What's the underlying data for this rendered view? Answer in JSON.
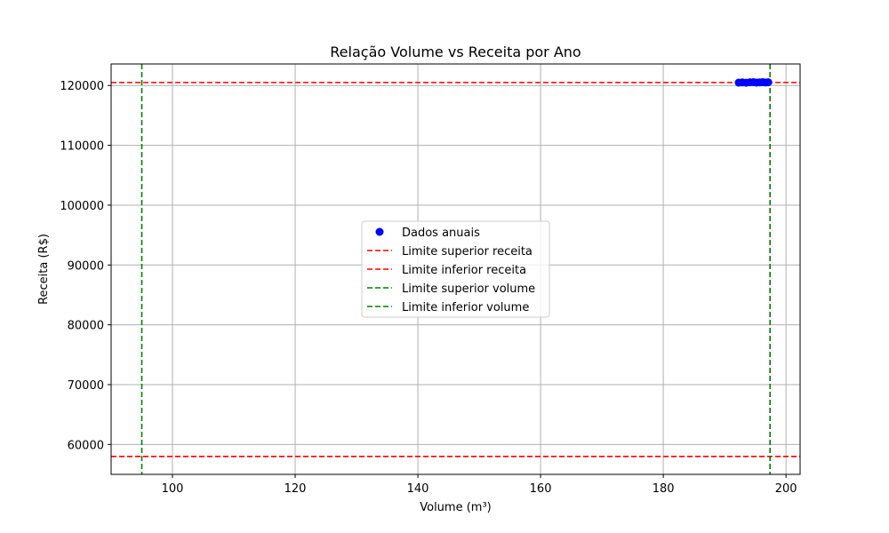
{
  "chart_data": {
    "type": "scatter",
    "title": "Relação Volume vs Receita por Ano",
    "xlabel": "Volume (m³)",
    "ylabel": "Receita (R$)",
    "xlim": [
      90,
      202.3
    ],
    "ylim": [
      55000,
      123600
    ],
    "xticks": [
      100,
      120,
      140,
      160,
      180,
      200
    ],
    "yticks": [
      60000,
      70000,
      80000,
      90000,
      100000,
      110000,
      120000
    ],
    "grid": true,
    "legend_position": "center",
    "series": [
      {
        "name": "Dados anuais",
        "color": "#0000ff",
        "x": [
          192.3,
          192.9,
          193.5,
          194.1,
          194.7,
          195.2,
          195.7,
          196.2,
          196.7,
          197.1
        ],
        "y": [
          120480,
          120510,
          120470,
          120530,
          120560,
          120490,
          120520,
          120550,
          120500,
          120540
        ]
      }
    ],
    "reference_lines": [
      {
        "name": "Limite superior receita",
        "orientation": "horizontal",
        "value": 120500,
        "color": "#ff0000"
      },
      {
        "name": "Limite inferior receita",
        "orientation": "horizontal",
        "value": 58000,
        "color": "#ff0000"
      },
      {
        "name": "Limite superior volume",
        "orientation": "vertical",
        "value": 197.4,
        "color": "#008000"
      },
      {
        "name": "Limite inferior volume",
        "orientation": "vertical",
        "value": 95,
        "color": "#008000"
      }
    ]
  }
}
